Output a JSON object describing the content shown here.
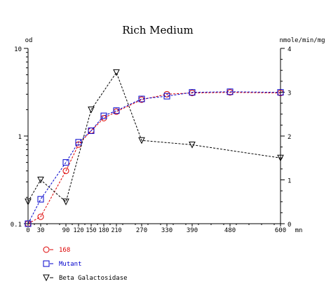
{
  "chart_data": {
    "type": "line",
    "title": "Rich Medium",
    "xlabel": "mn",
    "ylabel_left": "od",
    "ylabel_right": "nmole/min/mg",
    "x_ticks": [
      0,
      30,
      90,
      120,
      150,
      180,
      210,
      270,
      330,
      390,
      480,
      600
    ],
    "x_tick_labels": [
      "0",
      "30",
      "90",
      "120",
      "150",
      "180",
      "210",
      "270",
      "330",
      "390",
      "480",
      "600"
    ],
    "xlim": [
      0,
      600
    ],
    "y_left_scale": "log",
    "y_left_lim": [
      0.1,
      10
    ],
    "y_left_tick_labels": [
      "0.1",
      "1",
      "10"
    ],
    "y_right_lim": [
      0,
      4
    ],
    "y_right_tick_labels": [
      "0",
      "1",
      "2",
      "3",
      "4"
    ],
    "grid": false,
    "legend_position": "bottom-left",
    "series": [
      {
        "name": "168",
        "axis": "left",
        "color": "#dd0000",
        "marker": "circle",
        "x": [
          0,
          30,
          90,
          120,
          150,
          180,
          210,
          270,
          330,
          390,
          480,
          600
        ],
        "y": [
          0.1,
          0.12,
          0.4,
          0.8,
          1.15,
          1.6,
          1.9,
          2.6,
          3.0,
          3.1,
          3.15,
          3.1
        ]
      },
      {
        "name": "Mutant",
        "axis": "left",
        "color": "#0000cc",
        "marker": "square",
        "x": [
          0,
          30,
          90,
          120,
          150,
          180,
          210,
          270,
          330,
          390,
          480,
          600
        ],
        "y": [
          0.1,
          0.19,
          0.5,
          0.85,
          1.15,
          1.7,
          1.95,
          2.65,
          2.85,
          3.15,
          3.2,
          3.15
        ]
      },
      {
        "name": "Beta Galactosidase",
        "axis": "right",
        "color": "#000000",
        "marker": "triangle-down",
        "x": [
          0,
          30,
          90,
          150,
          210,
          270,
          390,
          600
        ],
        "y": [
          0.5,
          1.0,
          0.5,
          2.6,
          3.45,
          1.9,
          1.8,
          1.5
        ]
      }
    ]
  }
}
